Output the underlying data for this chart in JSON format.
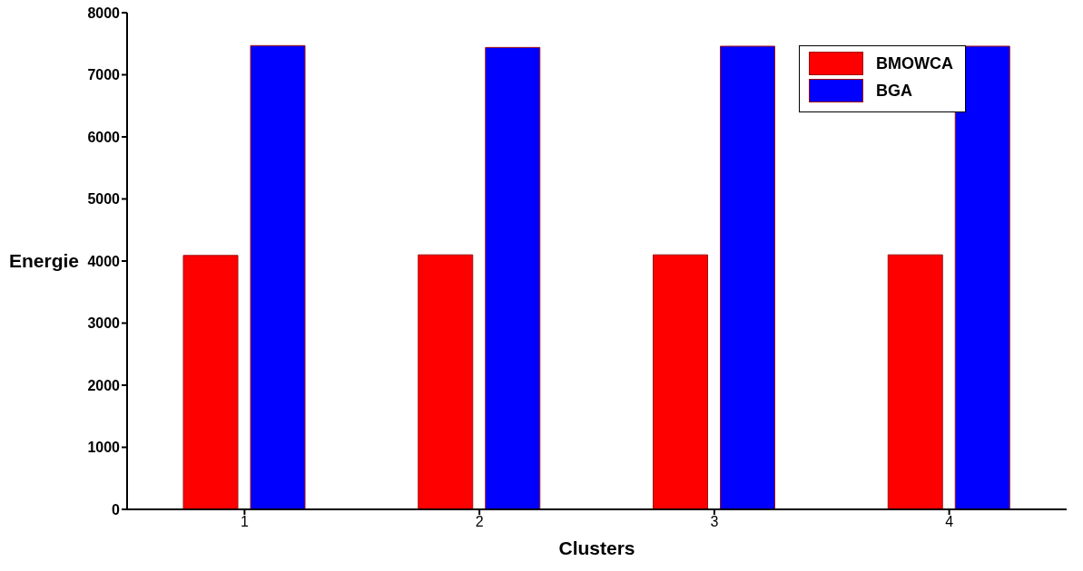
{
  "chart_data": {
    "type": "bar",
    "xlabel": "Clusters",
    "ylabel": "Energie",
    "categories": [
      "1",
      "2",
      "3",
      "4"
    ],
    "series": [
      {
        "name": "BMOWCA",
        "color": "#ff0000",
        "values": [
          4090,
          4100,
          4100,
          4100
        ]
      },
      {
        "name": "BGA",
        "color": "#0000ff",
        "values": [
          7470,
          7440,
          7460,
          7460
        ]
      }
    ],
    "ylim": [
      0,
      8000
    ],
    "yticks": [
      0,
      1000,
      2000,
      3000,
      4000,
      5000,
      6000,
      7000,
      8000
    ],
    "grid": false,
    "legend": "top right"
  }
}
